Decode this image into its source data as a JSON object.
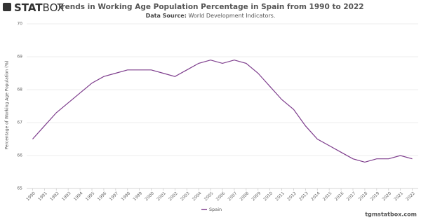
{
  "logo": {
    "bold": "STAT",
    "light": "BOX"
  },
  "footer": "tgmstatbox.com",
  "chart_data": {
    "type": "line",
    "title": "Trends in Working Age Population Percentage in Spain from 1990 to 2022",
    "subtitle_label": "Data Source:",
    "subtitle": "World Development Indicators.",
    "y_label": "Percentage of Working Age Population (%)",
    "categories": [
      "1990",
      "1991",
      "1992",
      "1993",
      "1994",
      "1995",
      "1996",
      "1997",
      "1998",
      "1999",
      "2000",
      "2001",
      "2002",
      "2003",
      "2004",
      "2005",
      "2006",
      "2007",
      "2008",
      "2009",
      "2010",
      "2011",
      "2012",
      "2013",
      "2014",
      "2015",
      "2016",
      "2017",
      "2018",
      "2019",
      "2020",
      "2021",
      "2022"
    ],
    "series": [
      {
        "name": "Spain",
        "color": "#7d3c8c",
        "values": [
          66.5,
          66.9,
          67.3,
          67.6,
          67.9,
          68.2,
          68.4,
          68.5,
          68.6,
          68.6,
          68.6,
          68.5,
          68.4,
          68.6,
          68.8,
          68.9,
          68.8,
          68.9,
          68.8,
          68.5,
          68.1,
          67.7,
          67.4,
          66.9,
          66.5,
          66.3,
          66.1,
          65.9,
          65.8,
          65.9,
          65.9,
          66.0,
          65.9
        ]
      }
    ],
    "ylim": [
      65,
      70
    ],
    "yticks": [
      65,
      66,
      67,
      68,
      69,
      70
    ],
    "grid": true
  }
}
